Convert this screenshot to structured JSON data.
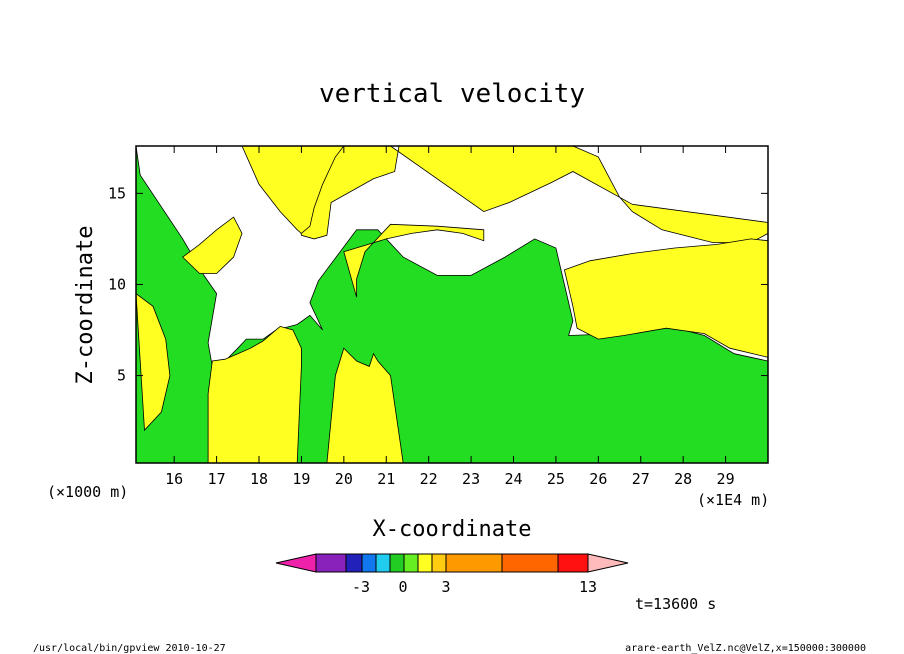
{
  "chart_data": {
    "type": "heatmap",
    "title": "vertical velocity",
    "xlabel": "X-coordinate",
    "ylabel": "Z-coordinate",
    "x_unit_label": "(×1E4 m)",
    "y_unit_label": "(×1000 m)",
    "xticks": [
      "16",
      "17",
      "18",
      "19",
      "20",
      "21",
      "22",
      "23",
      "24",
      "25",
      "26",
      "27",
      "28",
      "29"
    ],
    "yticks": [
      "5",
      "10",
      "15"
    ],
    "xlim": [
      15.1,
      30.0
    ],
    "ylim": [
      0.2,
      17.6
    ],
    "time_label": "t=13600 s",
    "colorbar": {
      "labels": [
        "-3",
        "0",
        "3",
        "13"
      ],
      "colors": [
        "#ee22aa",
        "#8822bb",
        "#2222bb",
        "#1177ee",
        "#22ccee",
        "#22cc22",
        "#66ee22",
        "#ffff22",
        "#ffcc11",
        "#ff9900",
        "#ff6600",
        "#ff1111",
        "#ff6666",
        "#ffbbbb"
      ]
    },
    "region_colors": {
      "green": "#22dd22",
      "yellow": "#ffff22"
    },
    "regions": [
      {
        "color": "green",
        "x": [
          15.1,
          15.2,
          16.2,
          16.7,
          17.0,
          16.8,
          16.9,
          17.2,
          17.5,
          17.7,
          18.1,
          18.4,
          18.9,
          19.2,
          19.5,
          19.2,
          19.4,
          20.3,
          20.8,
          21.4,
          22.2,
          23.0,
          23.8,
          24.5,
          25.0,
          25.2,
          25.4,
          25.3,
          26.5,
          27.5,
          28.5,
          29.2,
          29.8,
          30.0,
          30.0,
          15.1
        ],
        "y": [
          17.6,
          16.0,
          12.5,
          10.5,
          9.5,
          6.8,
          5.5,
          5.8,
          6.5,
          7.0,
          7.0,
          7.5,
          7.8,
          8.3,
          7.5,
          9.0,
          10.2,
          13.0,
          13.0,
          11.5,
          10.5,
          10.5,
          11.5,
          12.5,
          12.0,
          10.0,
          8.0,
          7.2,
          7.3,
          7.8,
          7.2,
          6.2,
          5.9,
          5.8,
          0.2,
          0.2
        ]
      },
      {
        "color": "yellow",
        "x": [
          17.7,
          18.4,
          18.9,
          19.0,
          19.3,
          19.6,
          19.7,
          20.7,
          21.2,
          21.3,
          22.8,
          23.8,
          25.4,
          26.0,
          26.5,
          26.8,
          27.5,
          28.7,
          29.6,
          30.0,
          30.0,
          26.8,
          25.4,
          24.9,
          23.9,
          23.3,
          21.1,
          20.5,
          19.8,
          18.7,
          17.7
        ],
        "y": [
          17.6,
          16.0,
          14.0,
          12.7,
          12.5,
          12.7,
          14.5,
          15.8,
          16.2,
          17.6,
          17.6,
          17.6,
          17.6,
          17.0,
          14.8,
          14.0,
          13.0,
          12.3,
          12.3,
          12.8,
          13.4,
          14.4,
          16.2,
          15.6,
          14.5,
          14.0,
          17.6,
          17.6,
          17.6,
          17.6,
          17.6
        ]
      },
      {
        "color": "yellow",
        "x": [
          17.6,
          18.0,
          18.5,
          18.9,
          19.0,
          19.2,
          19.3,
          19.5,
          19.7,
          19.8,
          20.0,
          19.9,
          19.5,
          18.9,
          18.5,
          18.0,
          17.6
        ],
        "y": [
          17.6,
          15.5,
          14.0,
          13.0,
          12.8,
          13.2,
          14.2,
          15.5,
          16.5,
          17.0,
          17.6,
          17.6,
          17.6,
          17.6,
          17.6,
          17.6,
          17.6
        ]
      },
      {
        "color": "yellow",
        "x": [
          16.8,
          17.3,
          17.8,
          18.3,
          18.6,
          18.9,
          19.0,
          19.0,
          18.8,
          18.5,
          18.3,
          18.1,
          17.8,
          17.5,
          17.2,
          16.9,
          16.8
        ],
        "y": [
          0.2,
          0.2,
          0.2,
          0.2,
          0.2,
          0.2,
          5.5,
          6.5,
          7.5,
          7.7,
          7.3,
          6.9,
          6.5,
          6.2,
          5.9,
          5.8,
          4.0
        ]
      },
      {
        "color": "yellow",
        "x": [
          19.6,
          21.4,
          21.1,
          20.8,
          20.7,
          20.6,
          20.3,
          20.0,
          19.8,
          19.6
        ],
        "y": [
          0.2,
          0.2,
          5.0,
          5.8,
          6.2,
          5.5,
          5.8,
          6.5,
          5.0,
          0.2
        ]
      },
      {
        "color": "yellow",
        "x": [
          20.0,
          21.0,
          21.6,
          22.2,
          22.8,
          23.3,
          23.3,
          22.2,
          21.1,
          20.5,
          20.3,
          20.3,
          20.0
        ],
        "y": [
          11.8,
          12.5,
          12.8,
          13.0,
          12.8,
          12.4,
          13.0,
          13.2,
          13.3,
          11.8,
          10.3,
          9.3,
          11.8
        ]
      },
      {
        "color": "yellow",
        "x": [
          25.2,
          25.8,
          26.8,
          27.8,
          28.8,
          29.6,
          30.0,
          30.0,
          29.1,
          28.5,
          27.6,
          26.6,
          26.0,
          25.5,
          25.4,
          25.2
        ],
        "y": [
          10.8,
          11.3,
          11.7,
          12.0,
          12.2,
          12.5,
          12.4,
          6.0,
          6.5,
          7.3,
          7.6,
          7.2,
          7.0,
          7.6,
          8.8,
          10.8
        ]
      },
      {
        "color": "yellow",
        "x": [
          15.1,
          15.5,
          15.8,
          15.9,
          15.7,
          15.3,
          15.1
        ],
        "y": [
          9.5,
          8.8,
          7.0,
          5.0,
          3.0,
          2.0,
          9.5
        ]
      },
      {
        "color": "yellow",
        "x": [
          16.2,
          16.6,
          17.0,
          17.4,
          17.6,
          17.4,
          17.0,
          16.6,
          16.2
        ],
        "y": [
          11.5,
          12.2,
          13.0,
          13.7,
          12.8,
          11.5,
          10.6,
          10.6,
          11.5
        ]
      }
    ]
  },
  "footer": {
    "left": "/usr/local/bin/gpview  2010-10-27",
    "right": "arare-earth_VelZ.nc@VelZ,x=150000:300000"
  }
}
